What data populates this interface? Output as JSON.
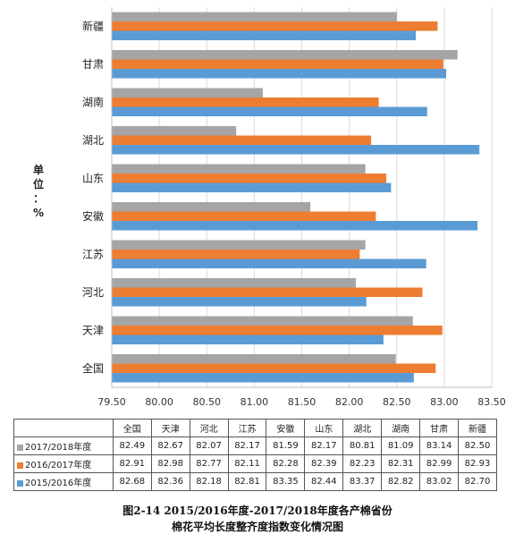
{
  "chart_data": {
    "type": "bar",
    "orientation": "horizontal",
    "categories": [
      "全国",
      "天津",
      "河北",
      "江苏",
      "安徽",
      "山东",
      "湖北",
      "湖南",
      "甘肃",
      "新疆"
    ],
    "series": [
      {
        "name": "2017/2018年度",
        "color": "#a5a5a5",
        "values": [
          82.49,
          82.67,
          82.07,
          82.17,
          81.59,
          82.17,
          80.81,
          81.09,
          83.14,
          82.5
        ]
      },
      {
        "name": "2016/2017年度",
        "color": "#ed7d31",
        "values": [
          82.91,
          82.98,
          82.77,
          82.11,
          82.28,
          82.39,
          82.23,
          82.31,
          82.99,
          82.93
        ]
      },
      {
        "name": "2015/2016年度",
        "color": "#5b9bd5",
        "values": [
          82.68,
          82.36,
          82.18,
          82.81,
          83.35,
          82.44,
          83.37,
          82.82,
          83.02,
          82.7
        ]
      }
    ],
    "xlim": [
      79.5,
      83.5
    ],
    "xticks": [
      "79.50",
      "80.00",
      "80.50",
      "81.00",
      "81.50",
      "82.00",
      "82.50",
      "83.00",
      "83.50"
    ],
    "ylabel_chars": [
      "单",
      "位",
      "：",
      "%"
    ],
    "grid": true,
    "legend": "table-below",
    "title_line1": "图2-14  2015/2016年度-2017/2018年度各产棉省份",
    "title_line2": "棉花平均长度整齐度指数变化情况图"
  },
  "table": {
    "columns": [
      "全国",
      "天津",
      "河北",
      "江苏",
      "安徽",
      "山东",
      "湖北",
      "湖南",
      "甘肃",
      "新疆"
    ],
    "rows": [
      {
        "label": "2017/2018年度",
        "color": "#a5a5a5",
        "values": [
          "82.49",
          "82.67",
          "82.07",
          "82.17",
          "81.59",
          "82.17",
          "80.81",
          "81.09",
          "83.14",
          "82.50"
        ]
      },
      {
        "label": "2016/2017年度",
        "color": "#ed7d31",
        "values": [
          "82.91",
          "82.98",
          "82.77",
          "82.11",
          "82.28",
          "82.39",
          "82.23",
          "82.31",
          "82.99",
          "82.93"
        ]
      },
      {
        "label": "2015/2016年度",
        "color": "#5b9bd5",
        "values": [
          "82.68",
          "82.36",
          "82.18",
          "82.81",
          "83.35",
          "82.44",
          "83.37",
          "82.82",
          "83.02",
          "82.70"
        ]
      }
    ]
  }
}
